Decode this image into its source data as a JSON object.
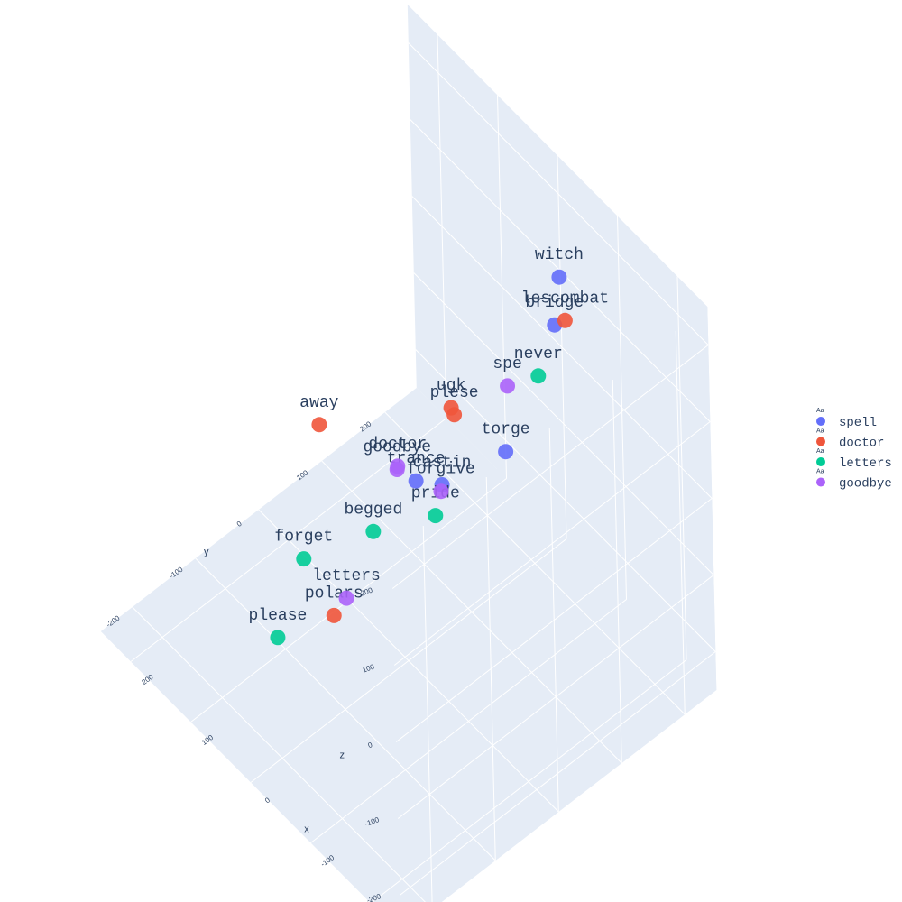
{
  "chart_data": {
    "type": "scatter3d",
    "colors": {
      "spell": "#636efa",
      "doctor": "#ef553b",
      "letters": "#00cc96",
      "goodbye": "#ab63fa",
      "pane_background": "#e5ecf6",
      "grid": "#ffffff",
      "text": "#2a3f5f"
    },
    "axes": {
      "x": {
        "title": "x",
        "ticks": [
          "-200",
          "-100",
          "0",
          "100",
          "200"
        ]
      },
      "y": {
        "title": "y",
        "ticks": [
          "-200",
          "-100",
          "0",
          "100",
          "200"
        ]
      },
      "z": {
        "title": "z",
        "ticks": [
          "-200",
          "-100",
          "0",
          "100",
          "200"
        ]
      }
    },
    "legend": {
      "position": "right",
      "symbol_text": "Aa",
      "items": [
        {
          "name": "spell",
          "color": "#636efa"
        },
        {
          "name": "doctor",
          "color": "#ef553b"
        },
        {
          "name": "letters",
          "color": "#00cc96"
        },
        {
          "name": "goodbye",
          "color": "#ab63fa"
        }
      ]
    },
    "series": [
      {
        "name": "spell",
        "points": [
          {
            "label": "torge",
            "x": -240,
            "y": -60,
            "z": 250
          },
          {
            "label": "bridge",
            "x": -120,
            "y": 130,
            "z": 200
          },
          {
            "label": "castin",
            "x": -130,
            "y": -60,
            "z": 120
          },
          {
            "label": "witch",
            "x": -20,
            "y": 230,
            "z": 120
          },
          {
            "label": "trance",
            "x": 90,
            "y": 100,
            "z": -150
          }
        ]
      },
      {
        "name": "doctor",
        "points": [
          {
            "label": "lescombat",
            "x": -160,
            "y": 110,
            "z": 250
          },
          {
            "label": "plese",
            "x": 0,
            "y": 80,
            "z": 20
          },
          {
            "label": "ugk",
            "x": 60,
            "y": 130,
            "z": -50
          },
          {
            "label": "polars",
            "x": -50,
            "y": -160,
            "z": -50
          },
          {
            "label": "away",
            "x": 220,
            "y": 70,
            "z": -160
          }
        ]
      },
      {
        "name": "letters",
        "points": [
          {
            "label": "never",
            "x": -200,
            "y": 30,
            "z": 260
          },
          {
            "label": "please",
            "x": -30,
            "y": -230,
            "z": -50
          },
          {
            "label": "forget",
            "x": 120,
            "y": -50,
            "z": -180
          },
          {
            "label": "begged",
            "x": 110,
            "y": 50,
            "z": -200
          },
          {
            "label": "pride",
            "x": 80,
            "y": 120,
            "z": -200
          }
        ]
      },
      {
        "name": "goodbye",
        "points": [
          {
            "label": "forgive",
            "x": -150,
            "y": -80,
            "z": 140
          },
          {
            "label": "spe",
            "x": -70,
            "y": 100,
            "z": 100
          },
          {
            "label": "goodbye",
            "x": -10,
            "y": -20,
            "z": 20
          },
          {
            "label": "doctor",
            "x": 0,
            "y": -10,
            "z": 10
          },
          {
            "label": "letters",
            "x": -50,
            "y": -140,
            "z": -40
          }
        ]
      }
    ]
  }
}
